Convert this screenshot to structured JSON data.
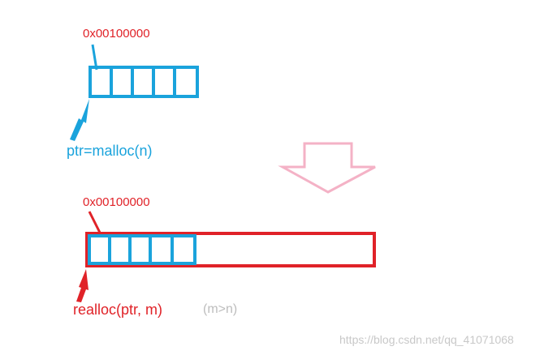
{
  "colors": {
    "red": "#e02228",
    "blue": "#1aa3dc",
    "pink": "#f4b2c6",
    "gray": "#bdbdbd",
    "watermark": "#c8c8c8"
  },
  "top": {
    "address": "0x00100000",
    "pointer_label": "ptr=malloc(n)"
  },
  "bottom": {
    "address": "0x00100000",
    "call_label": "realloc(ptr, m)",
    "condition": "(m>n)"
  },
  "watermark": "https://blog.csdn.net/qq_41071068"
}
